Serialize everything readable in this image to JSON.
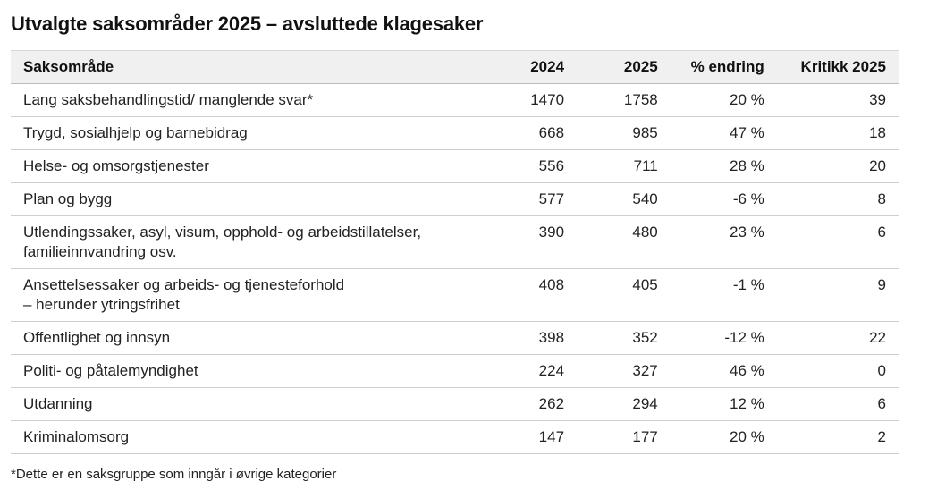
{
  "chart_data": {
    "type": "table",
    "title": "Utvalgte saksområder 2025 – avsluttede klagesaker",
    "columns": [
      "Saksområde",
      "2024",
      "2025",
      "% endring",
      "Kritikk 2025"
    ],
    "rows": [
      {
        "area": [
          "Lang saksbehandlingstid/ manglende svar*"
        ],
        "y2024": "1470",
        "y2025": "1758",
        "change": "20 %",
        "kritikk": "39"
      },
      {
        "area": [
          "Trygd, sosialhjelp og barnebidrag"
        ],
        "y2024": "668",
        "y2025": "985",
        "change": "47 %",
        "kritikk": "18"
      },
      {
        "area": [
          "Helse- og omsorgstjenester"
        ],
        "y2024": "556",
        "y2025": "711",
        "change": "28 %",
        "kritikk": "20"
      },
      {
        "area": [
          "Plan og bygg"
        ],
        "y2024": "577",
        "y2025": "540",
        "change": "-6 %",
        "kritikk": "8"
      },
      {
        "area": [
          "Utlendingssaker, asyl, visum, opphold- og arbeidstillatelser,",
          "familieinnvandring osv."
        ],
        "y2024": "390",
        "y2025": "480",
        "change": "23 %",
        "kritikk": "6"
      },
      {
        "area": [
          "Ansettelsessaker og arbeids- og tjenesteforhold",
          "– herunder ytringsfrihet"
        ],
        "y2024": "408",
        "y2025": "405",
        "change": "-1 %",
        "kritikk": "9"
      },
      {
        "area": [
          "Offentlighet og innsyn"
        ],
        "y2024": "398",
        "y2025": "352",
        "change": "-12 %",
        "kritikk": "22"
      },
      {
        "area": [
          "Politi- og påtalemyndighet"
        ],
        "y2024": "224",
        "y2025": "327",
        "change": "46 %",
        "kritikk": "0"
      },
      {
        "area": [
          "Utdanning"
        ],
        "y2024": "262",
        "y2025": "294",
        "change": "12 %",
        "kritikk": "6"
      },
      {
        "area": [
          "Kriminalomsorg"
        ],
        "y2024": "147",
        "y2025": "177",
        "change": "20 %",
        "kritikk": "2"
      }
    ],
    "footnote": "*Dette er en saksgruppe som inngår i øvrige kategorier"
  }
}
